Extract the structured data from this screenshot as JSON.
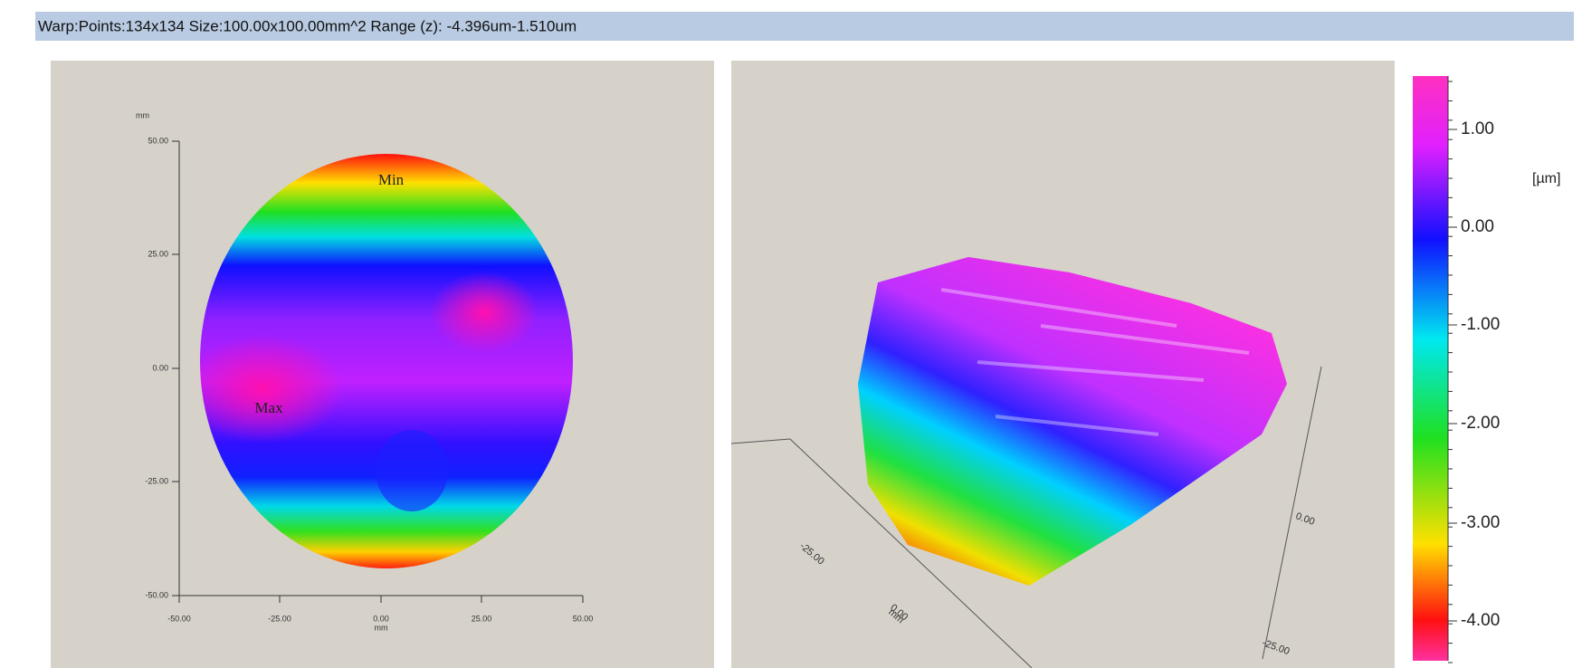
{
  "header": {
    "title": "Warp:Points:134x134 Size:100.00x100.00mm^2 Range (z): -4.396um-1.510um"
  },
  "map2d": {
    "y_unit": "mm",
    "y_ticks": [
      "50.00",
      "25.00",
      "0.00",
      "-25.00",
      "-50.00"
    ],
    "x_ticks": [
      "-50.00",
      "-25.00",
      "0.00",
      "25.00",
      "50.00"
    ],
    "x_unit": "mm",
    "min_label": "Min",
    "max_label": "Max"
  },
  "view3d": {
    "front_ticks": [
      "-25.00",
      "0.00"
    ],
    "front_unit": "mm",
    "side_ticks": [
      "0.00",
      "-25.00"
    ]
  },
  "colorbar": {
    "ticks": [
      "1.00",
      "0.00",
      "-1.00",
      "-2.00",
      "-3.00",
      "-4.00"
    ],
    "unit": "[µm]"
  }
}
